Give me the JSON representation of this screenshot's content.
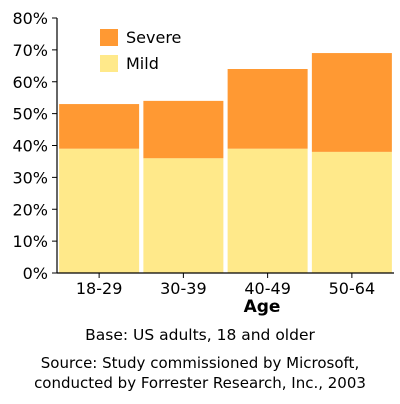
{
  "chart_data": {
    "type": "bar",
    "stacked": true,
    "categories": [
      "18-29",
      "30-39",
      "40-49",
      "50-64"
    ],
    "series": [
      {
        "name": "Mild",
        "values": [
          39,
          36,
          39,
          38
        ],
        "color": "#FFE98A"
      },
      {
        "name": "Severe",
        "values": [
          14,
          18,
          25,
          31
        ],
        "color": "#FF9933"
      }
    ],
    "totals": [
      53,
      54,
      64,
      69
    ],
    "xlabel": "Age",
    "ylabel": "",
    "ylim": [
      0,
      80
    ],
    "yticks": [
      "0%",
      "10%",
      "20%",
      "30%",
      "40%",
      "50%",
      "60%",
      "70%",
      "80%"
    ],
    "grid": false,
    "legend_position": "top-left"
  },
  "notes": {
    "base": "Base: US adults, 18 and older",
    "source_line1": "Source: Study commissioned by Microsoft,",
    "source_line2": "conducted by Forrester Research, Inc., 2003"
  }
}
